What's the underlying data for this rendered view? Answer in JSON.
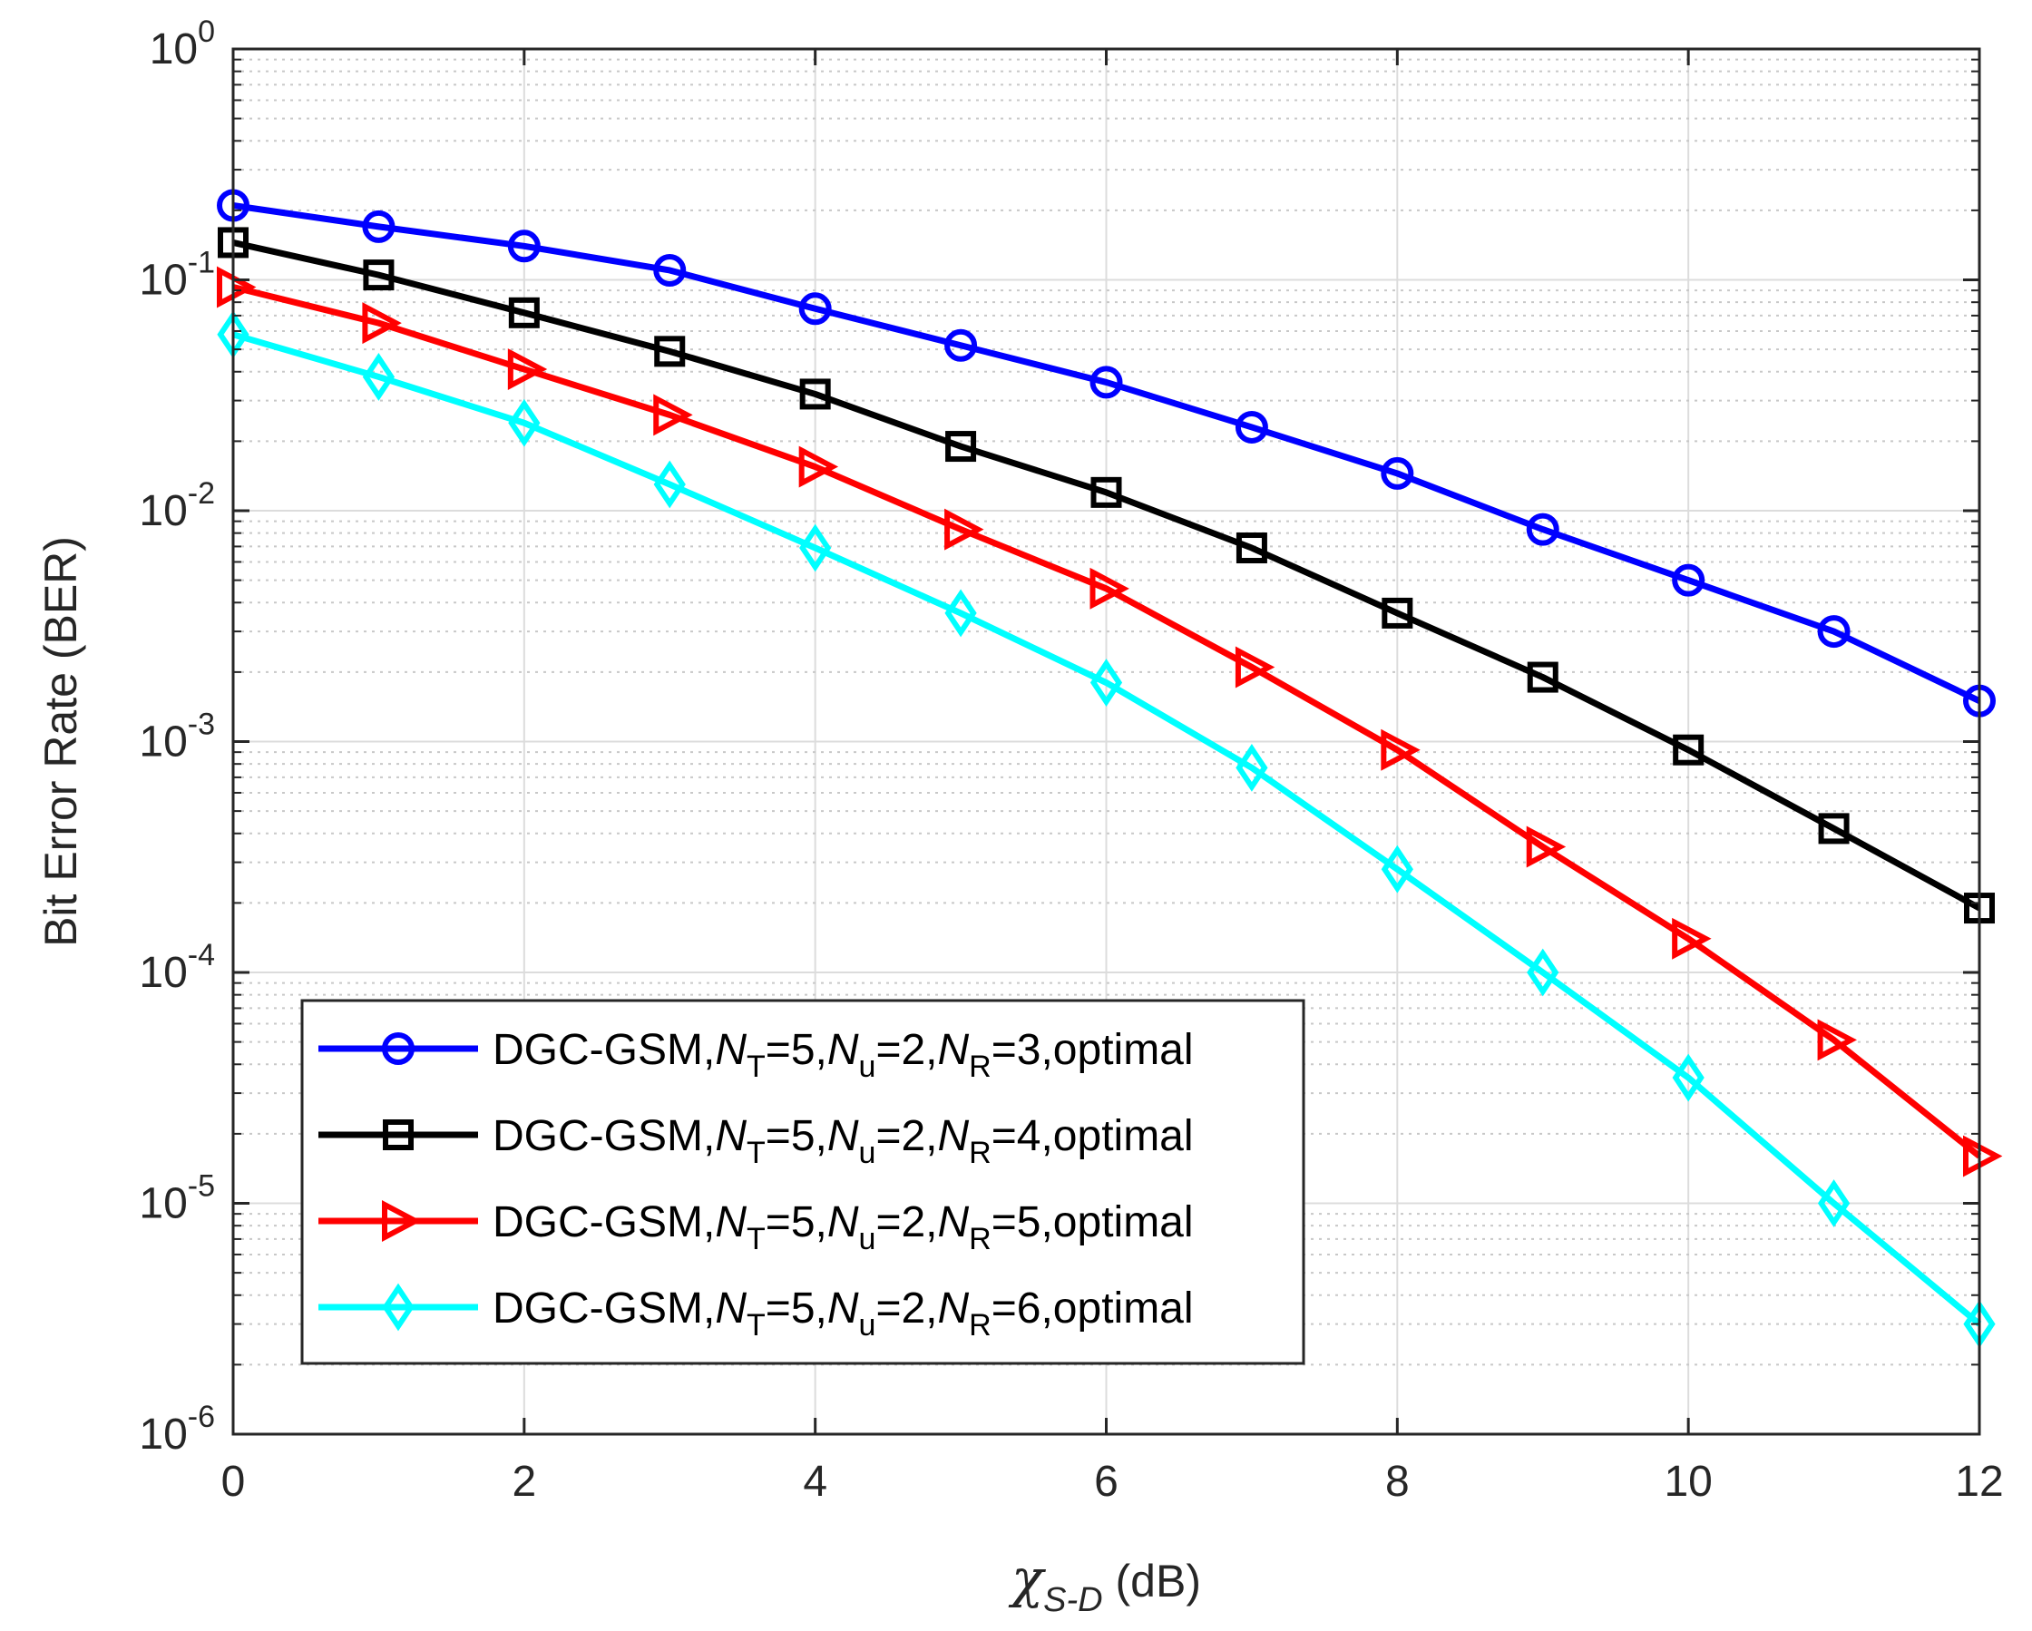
{
  "chart_data": {
    "type": "line",
    "title": "",
    "xlabel": {
      "symbol": "χ",
      "subscript": "S-D",
      "unit": "(dB)"
    },
    "ylabel": "Bit Error Rate (BER)",
    "xlim": [
      0,
      12
    ],
    "ylim": [
      1e-06,
      1
    ],
    "yscale": "log",
    "grid": true,
    "minor_grid": true,
    "x_ticks": [
      0,
      2,
      4,
      6,
      8,
      10,
      12
    ],
    "x_tick_labels": [
      "0",
      "2",
      "4",
      "6",
      "8",
      "10",
      "12"
    ],
    "y_tick_labels": [
      {
        "base": "10",
        "exp": "0"
      },
      {
        "base": "10",
        "exp": "-1"
      },
      {
        "base": "10",
        "exp": "-2"
      },
      {
        "base": "10",
        "exp": "-3"
      },
      {
        "base": "10",
        "exp": "-4"
      },
      {
        "base": "10",
        "exp": "-5"
      },
      {
        "base": "10",
        "exp": "-6"
      }
    ],
    "legend_position": "lower-left",
    "x": [
      0,
      1,
      2,
      3,
      4,
      5,
      6,
      7,
      8,
      9,
      10,
      11,
      12
    ],
    "series": [
      {
        "name": "DGC-GSM,NT=5,Nu=2,NR=3,optimal",
        "legend_parts": {
          "prefix": "DGC-GSM,",
          "nt": "5",
          "nu": "2",
          "nr": "3",
          "suffix": "optimal"
        },
        "color": "#0000ff",
        "marker": "circle",
        "values": [
          0.21,
          0.17,
          0.14,
          0.11,
          0.075,
          0.052,
          0.036,
          0.023,
          0.0145,
          0.0083,
          0.005,
          0.003,
          0.0015
        ]
      },
      {
        "name": "DGC-GSM,NT=5,Nu=2,NR=4,optimal",
        "legend_parts": {
          "prefix": "DGC-GSM,",
          "nt": "5",
          "nu": "2",
          "nr": "4",
          "suffix": "optimal"
        },
        "color": "#000000",
        "marker": "square",
        "values": [
          0.145,
          0.105,
          0.072,
          0.049,
          0.032,
          0.019,
          0.012,
          0.0069,
          0.0036,
          0.0019,
          0.00092,
          0.00042,
          0.00019
        ]
      },
      {
        "name": "DGC-GSM,NT=5,Nu=2,NR=5,optimal",
        "legend_parts": {
          "prefix": "DGC-GSM,",
          "nt": "5",
          "nu": "2",
          "nr": "5",
          "suffix": "optimal"
        },
        "color": "#ff0000",
        "marker": "triangle-right",
        "values": [
          0.093,
          0.065,
          0.041,
          0.026,
          0.0155,
          0.0083,
          0.0046,
          0.0021,
          0.00092,
          0.00035,
          0.00014,
          5.1e-05,
          1.6e-05
        ]
      },
      {
        "name": "DGC-GSM,NT=5,Nu=2,NR=6,optimal",
        "legend_parts": {
          "prefix": "DGC-GSM,",
          "nt": "5",
          "nu": "2",
          "nr": "6",
          "suffix": "optimal"
        },
        "color": "#00ffff",
        "marker": "diamond",
        "values": [
          0.058,
          0.038,
          0.024,
          0.013,
          0.0069,
          0.0036,
          0.0018,
          0.00077,
          0.00028,
          0.0001,
          3.5e-05,
          1e-05,
          3e-06
        ]
      }
    ]
  }
}
